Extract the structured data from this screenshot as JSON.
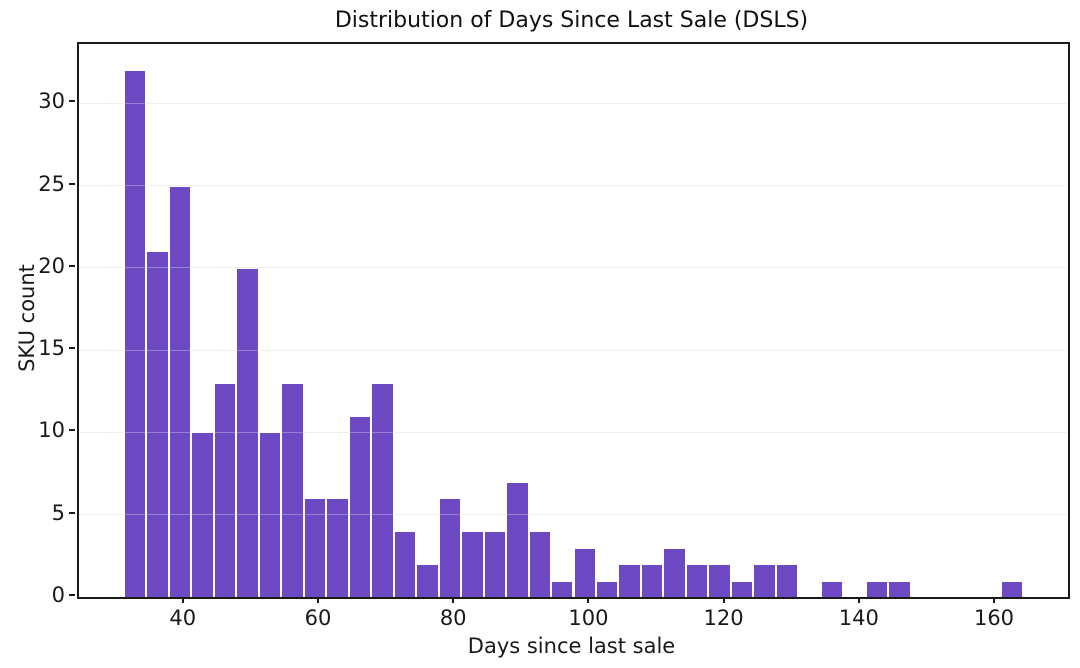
{
  "chart_data": {
    "type": "bar",
    "subtype": "histogram",
    "title": "Distribution of Days Since Last Sale (DSLS)",
    "xlabel": "Days since last sale",
    "ylabel": "SKU count",
    "bin_start": 31,
    "bin_width": 3.325,
    "counts": [
      32,
      21,
      25,
      10,
      13,
      20,
      10,
      13,
      6,
      6,
      11,
      13,
      4,
      2,
      6,
      4,
      4,
      7,
      4,
      1,
      3,
      1,
      2,
      2,
      3,
      2,
      2,
      1,
      2,
      2,
      0,
      1,
      0,
      1,
      1,
      0,
      0,
      0,
      0,
      1
    ],
    "total_skus": 236,
    "x_ticks": [
      40,
      60,
      80,
      100,
      120,
      140,
      160
    ],
    "y_ticks": [
      0,
      5,
      10,
      15,
      20,
      25,
      30
    ],
    "xlim": [
      24.35,
      170.65
    ],
    "ylim": [
      0,
      33.6
    ],
    "grid": "horizontal",
    "legend": "none",
    "bar_color": "#6d49c3",
    "bar_edge_color": "#ffffff",
    "gridline_color": "#e9e9e9",
    "axis_color": "#1a1a1a",
    "background_color": "#ffffff"
  }
}
